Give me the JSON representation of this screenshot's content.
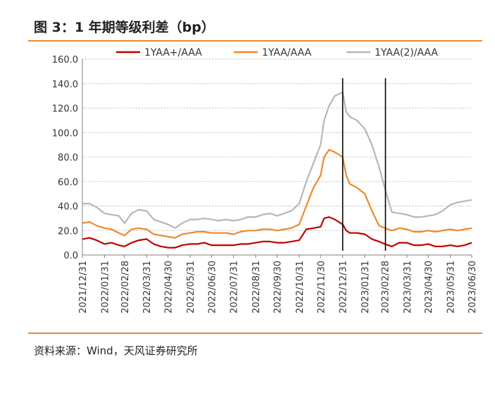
{
  "title": "图 3：1 年期等级利差（bp）",
  "source": "资料来源：Wind，天风证券研究所",
  "chart_data": {
    "type": "line",
    "title": "图 3：1 年期等级利差（bp）",
    "xlabel": "",
    "ylabel": "",
    "ylim": [
      0,
      160
    ],
    "yticks": [
      "0.0",
      "20.0",
      "40.0",
      "60.0",
      "80.0",
      "100.0",
      "120.0",
      "140.0",
      "160.0"
    ],
    "x_range": [
      "2021-12-31",
      "2023-06-30"
    ],
    "xticks": [
      "2021/12/31",
      "2022/01/31",
      "2022/02/28",
      "2022/03/31",
      "2022/04/30",
      "2022/05/31",
      "2022/06/30",
      "2022/07/31",
      "2022/08/31",
      "2022/09/30",
      "2022/10/31",
      "2022/11/30",
      "2022/12/31",
      "2023/01/31",
      "2023/02/28",
      "2023/03/31",
      "2023/04/30",
      "2023/05/31",
      "2023/06/30"
    ],
    "grid": "horizontal dotted",
    "legend_position": "top",
    "vertical_markers": [
      "2022-12-31",
      "2023-03-01"
    ],
    "series": [
      {
        "name": "1YAA+/AAA",
        "color": "#c00000",
        "points": [
          [
            "2021-12-31",
            13
          ],
          [
            "2022-01-10",
            14
          ],
          [
            "2022-01-20",
            12
          ],
          [
            "2022-01-31",
            9
          ],
          [
            "2022-02-10",
            10
          ],
          [
            "2022-02-20",
            8
          ],
          [
            "2022-02-28",
            7
          ],
          [
            "2022-03-10",
            10
          ],
          [
            "2022-03-20",
            12
          ],
          [
            "2022-03-31",
            13
          ],
          [
            "2022-04-10",
            9
          ],
          [
            "2022-04-20",
            7
          ],
          [
            "2022-04-30",
            6
          ],
          [
            "2022-05-10",
            6
          ],
          [
            "2022-05-20",
            8
          ],
          [
            "2022-05-31",
            9
          ],
          [
            "2022-06-10",
            9
          ],
          [
            "2022-06-20",
            10
          ],
          [
            "2022-06-30",
            8
          ],
          [
            "2022-07-10",
            8
          ],
          [
            "2022-07-20",
            8
          ],
          [
            "2022-07-31",
            8
          ],
          [
            "2022-08-10",
            9
          ],
          [
            "2022-08-20",
            9
          ],
          [
            "2022-08-31",
            10
          ],
          [
            "2022-09-10",
            11
          ],
          [
            "2022-09-20",
            11
          ],
          [
            "2022-09-30",
            10
          ],
          [
            "2022-10-10",
            10
          ],
          [
            "2022-10-20",
            11
          ],
          [
            "2022-10-31",
            12
          ],
          [
            "2022-11-10",
            21
          ],
          [
            "2022-11-20",
            22
          ],
          [
            "2022-11-30",
            23
          ],
          [
            "2022-12-05",
            30
          ],
          [
            "2022-12-12",
            31
          ],
          [
            "2022-12-20",
            29
          ],
          [
            "2022-12-31",
            25
          ],
          [
            "2023-01-05",
            20
          ],
          [
            "2023-01-10",
            18
          ],
          [
            "2023-01-20",
            18
          ],
          [
            "2023-01-31",
            17
          ],
          [
            "2023-02-10",
            13
          ],
          [
            "2023-02-20",
            11
          ],
          [
            "2023-02-28",
            9
          ],
          [
            "2023-03-10",
            7
          ],
          [
            "2023-03-20",
            10
          ],
          [
            "2023-03-31",
            10
          ],
          [
            "2023-04-10",
            8
          ],
          [
            "2023-04-20",
            8
          ],
          [
            "2023-04-30",
            9
          ],
          [
            "2023-05-10",
            7
          ],
          [
            "2023-05-20",
            7
          ],
          [
            "2023-05-31",
            8
          ],
          [
            "2023-06-10",
            7
          ],
          [
            "2023-06-20",
            8
          ],
          [
            "2023-06-30",
            10
          ]
        ]
      },
      {
        "name": "1YAA/AAA",
        "color": "#f0882a",
        "points": [
          [
            "2021-12-31",
            26
          ],
          [
            "2022-01-10",
            27
          ],
          [
            "2022-01-20",
            24
          ],
          [
            "2022-01-31",
            22
          ],
          [
            "2022-02-10",
            21
          ],
          [
            "2022-02-20",
            18
          ],
          [
            "2022-02-28",
            16
          ],
          [
            "2022-03-10",
            21
          ],
          [
            "2022-03-20",
            22
          ],
          [
            "2022-03-31",
            21
          ],
          [
            "2022-04-10",
            17
          ],
          [
            "2022-04-20",
            16
          ],
          [
            "2022-04-30",
            15
          ],
          [
            "2022-05-10",
            14
          ],
          [
            "2022-05-20",
            17
          ],
          [
            "2022-05-31",
            18
          ],
          [
            "2022-06-10",
            19
          ],
          [
            "2022-06-20",
            19
          ],
          [
            "2022-06-30",
            18
          ],
          [
            "2022-07-10",
            18
          ],
          [
            "2022-07-20",
            18
          ],
          [
            "2022-07-31",
            17
          ],
          [
            "2022-08-10",
            19
          ],
          [
            "2022-08-20",
            20
          ],
          [
            "2022-08-31",
            20
          ],
          [
            "2022-09-10",
            21
          ],
          [
            "2022-09-20",
            21
          ],
          [
            "2022-09-30",
            20
          ],
          [
            "2022-10-10",
            21
          ],
          [
            "2022-10-20",
            22
          ],
          [
            "2022-10-31",
            25
          ],
          [
            "2022-11-10",
            40
          ],
          [
            "2022-11-20",
            55
          ],
          [
            "2022-11-30",
            65
          ],
          [
            "2022-12-05",
            80
          ],
          [
            "2022-12-12",
            86
          ],
          [
            "2022-12-20",
            84
          ],
          [
            "2022-12-31",
            80
          ],
          [
            "2023-01-05",
            65
          ],
          [
            "2023-01-10",
            58
          ],
          [
            "2023-01-20",
            55
          ],
          [
            "2023-01-31",
            50
          ],
          [
            "2023-02-10",
            36
          ],
          [
            "2023-02-20",
            24
          ],
          [
            "2023-02-28",
            22
          ],
          [
            "2023-03-10",
            20
          ],
          [
            "2023-03-20",
            22
          ],
          [
            "2023-03-31",
            21
          ],
          [
            "2023-04-10",
            19
          ],
          [
            "2023-04-20",
            19
          ],
          [
            "2023-04-30",
            20
          ],
          [
            "2023-05-10",
            19
          ],
          [
            "2023-05-20",
            20
          ],
          [
            "2023-05-31",
            21
          ],
          [
            "2023-06-10",
            20
          ],
          [
            "2023-06-20",
            21
          ],
          [
            "2023-06-30",
            22
          ]
        ]
      },
      {
        "name": "1YAA(2)/AAA",
        "color": "#b7b7b7",
        "points": [
          [
            "2021-12-31",
            42
          ],
          [
            "2022-01-10",
            42
          ],
          [
            "2022-01-20",
            39
          ],
          [
            "2022-01-31",
            34
          ],
          [
            "2022-02-10",
            33
          ],
          [
            "2022-02-20",
            32
          ],
          [
            "2022-02-28",
            26
          ],
          [
            "2022-03-10",
            34
          ],
          [
            "2022-03-20",
            37
          ],
          [
            "2022-03-31",
            36
          ],
          [
            "2022-04-10",
            29
          ],
          [
            "2022-04-20",
            27
          ],
          [
            "2022-04-30",
            25
          ],
          [
            "2022-05-10",
            22
          ],
          [
            "2022-05-20",
            26
          ],
          [
            "2022-05-31",
            29
          ],
          [
            "2022-06-10",
            29
          ],
          [
            "2022-06-20",
            30
          ],
          [
            "2022-06-30",
            29
          ],
          [
            "2022-07-10",
            28
          ],
          [
            "2022-07-20",
            29
          ],
          [
            "2022-07-31",
            28
          ],
          [
            "2022-08-10",
            29
          ],
          [
            "2022-08-20",
            31
          ],
          [
            "2022-08-31",
            31
          ],
          [
            "2022-09-10",
            33
          ],
          [
            "2022-09-20",
            34
          ],
          [
            "2022-09-30",
            32
          ],
          [
            "2022-10-10",
            34
          ],
          [
            "2022-10-20",
            36
          ],
          [
            "2022-10-31",
            42
          ],
          [
            "2022-11-10",
            60
          ],
          [
            "2022-11-20",
            75
          ],
          [
            "2022-11-30",
            90
          ],
          [
            "2022-12-05",
            110
          ],
          [
            "2022-12-12",
            122
          ],
          [
            "2022-12-20",
            130
          ],
          [
            "2022-12-31",
            133
          ],
          [
            "2023-01-05",
            117
          ],
          [
            "2023-01-10",
            113
          ],
          [
            "2023-01-20",
            110
          ],
          [
            "2023-01-31",
            103
          ],
          [
            "2023-02-10",
            90
          ],
          [
            "2023-02-20",
            72
          ],
          [
            "2023-02-28",
            55
          ],
          [
            "2023-03-10",
            35
          ],
          [
            "2023-03-20",
            34
          ],
          [
            "2023-03-31",
            33
          ],
          [
            "2023-04-10",
            31
          ],
          [
            "2023-04-20",
            31
          ],
          [
            "2023-04-30",
            32
          ],
          [
            "2023-05-10",
            33
          ],
          [
            "2023-05-20",
            36
          ],
          [
            "2023-05-31",
            41
          ],
          [
            "2023-06-10",
            43
          ],
          [
            "2023-06-20",
            44
          ],
          [
            "2023-06-30",
            45
          ]
        ]
      }
    ]
  }
}
